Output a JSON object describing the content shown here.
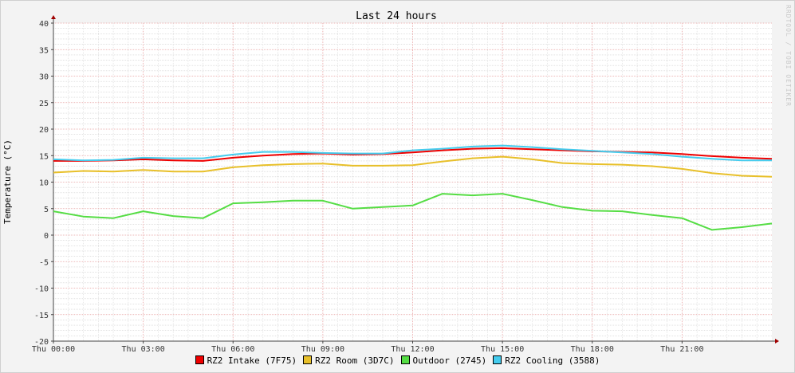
{
  "chart_data": {
    "type": "line",
    "title": "Last 24 hours",
    "ylabel": "Temperature (°C)",
    "xlabel": "",
    "ylim": [
      -20,
      40
    ],
    "yticks": [
      -20,
      -15,
      -10,
      -5,
      0,
      5,
      10,
      15,
      20,
      25,
      30,
      35,
      40
    ],
    "xlim": [
      0,
      24
    ],
    "xticks": [
      {
        "hour": 0,
        "label": "Thu 00:00"
      },
      {
        "hour": 3,
        "label": "Thu 03:00"
      },
      {
        "hour": 6,
        "label": "Thu 06:00"
      },
      {
        "hour": 9,
        "label": "Thu 09:00"
      },
      {
        "hour": 12,
        "label": "Thu 12:00"
      },
      {
        "hour": 15,
        "label": "Thu 15:00"
      },
      {
        "hour": 18,
        "label": "Thu 18:00"
      },
      {
        "hour": 21,
        "label": "Thu 21:00"
      }
    ],
    "grid": true,
    "legend_position": "bottom",
    "series": [
      {
        "name": "RZ2 Intake (7F75)",
        "color": "#ee0000",
        "x": [
          0,
          1,
          2,
          3,
          4,
          5,
          6,
          7,
          8,
          9,
          10,
          11,
          12,
          13,
          14,
          15,
          16,
          17,
          18,
          19,
          20,
          21,
          22,
          23,
          24
        ],
        "y": [
          14.0,
          14.0,
          14.1,
          14.3,
          14.1,
          14.0,
          14.6,
          15.0,
          15.3,
          15.4,
          15.2,
          15.3,
          15.6,
          16.0,
          16.3,
          16.4,
          16.2,
          16.0,
          15.8,
          15.7,
          15.6,
          15.3,
          14.9,
          14.6,
          14.4
        ]
      },
      {
        "name": "RZ2 Room (3D7C)",
        "color": "#e8c02a",
        "x": [
          0,
          1,
          2,
          3,
          4,
          5,
          6,
          7,
          8,
          9,
          10,
          11,
          12,
          13,
          14,
          15,
          16,
          17,
          18,
          19,
          20,
          21,
          22,
          23,
          24
        ],
        "y": [
          11.8,
          12.1,
          12.0,
          12.3,
          12.0,
          12.0,
          12.8,
          13.2,
          13.4,
          13.5,
          13.1,
          13.1,
          13.2,
          13.9,
          14.5,
          14.8,
          14.3,
          13.6,
          13.4,
          13.3,
          13.0,
          12.5,
          11.7,
          11.2,
          11.0
        ]
      },
      {
        "name": "Outdoor (2745)",
        "color": "#55dd44",
        "x": [
          0,
          1,
          2,
          3,
          4,
          5,
          6,
          7,
          8,
          9,
          10,
          11,
          12,
          13,
          14,
          15,
          16,
          17,
          18,
          19,
          20,
          21,
          22,
          23,
          24
        ],
        "y": [
          4.5,
          3.5,
          3.2,
          4.5,
          3.6,
          3.2,
          6.0,
          6.2,
          6.5,
          6.5,
          5.0,
          5.3,
          5.6,
          7.8,
          7.5,
          7.8,
          6.6,
          5.3,
          4.6,
          4.5,
          3.8,
          3.2,
          1.0,
          1.5,
          2.2
        ]
      },
      {
        "name": "RZ2 Cooling (3588)",
        "color": "#44ccee",
        "x": [
          0,
          1,
          2,
          3,
          4,
          5,
          6,
          7,
          8,
          9,
          10,
          11,
          12,
          13,
          14,
          15,
          16,
          17,
          18,
          19,
          20,
          21,
          22,
          23,
          24
        ],
        "y": [
          14.3,
          14.1,
          14.2,
          14.6,
          14.5,
          14.5,
          15.2,
          15.7,
          15.7,
          15.5,
          15.4,
          15.4,
          16.0,
          16.3,
          16.7,
          16.9,
          16.6,
          16.2,
          15.9,
          15.6,
          15.3,
          14.8,
          14.4,
          14.1,
          14.1
        ]
      }
    ]
  },
  "watermark": "RRDTOOL / TOBI OETIKER"
}
